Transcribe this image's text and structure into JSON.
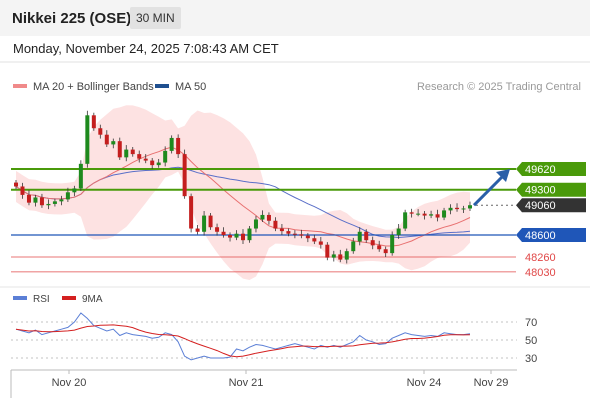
{
  "header": {
    "instrument": "Nikkei 225 (OSE)",
    "timeframe": "30 MIN"
  },
  "datetime": "Monday, November 24, 2025 7:08:43 AM CET",
  "legend": {
    "ma20_bb": "MA 20 + Bollinger Bands",
    "ma50": "MA 50",
    "copyright": "Research © 2025 Trading Central"
  },
  "colors": {
    "resistance": "#4a9a0a",
    "support": "#1f56b8",
    "weak_support": "#e04848",
    "current": "#333333",
    "ma20": "#e87070",
    "ma50": "#5a6fc8",
    "band_fill": "#fde2e2",
    "up_candle": "#1e8a1e",
    "down_candle": "#c41e1e",
    "rsi": "#5b7fd6",
    "rsi_ma": "#d42020",
    "arrow": "#2a5fa8"
  },
  "chart_data": [
    {
      "type": "candlestick",
      "title": "Nikkei 225 (OSE)",
      "timeframe": "30 MIN",
      "x_labels": [
        "Nov 20",
        "Nov 21",
        "Nov 24",
        "Nov 29"
      ],
      "series": [
        {
          "name": "MA 20 + Bollinger Bands",
          "color": "#e87070"
        },
        {
          "name": "MA 50",
          "color": "#5a6fc8"
        }
      ],
      "price_levels": [
        {
          "value": 49620,
          "label": "49620",
          "kind": "resistance"
        },
        {
          "value": 49300,
          "label": "49300",
          "kind": "resistance"
        },
        {
          "value": 49060,
          "label": "49060",
          "kind": "current"
        },
        {
          "value": 48600,
          "label": "48600",
          "kind": "support"
        },
        {
          "value": 48260,
          "label": "48260",
          "kind": "support_weak"
        },
        {
          "value": 48030,
          "label": "48030",
          "kind": "support_weak"
        }
      ],
      "trend_arrow": {
        "from": 49060,
        "to": 49620,
        "direction": "up"
      },
      "closes": [
        49350,
        49220,
        49100,
        49180,
        49060,
        49080,
        49120,
        49150,
        49260,
        49320,
        49700,
        50450,
        50250,
        50150,
        50000,
        50050,
        49800,
        49920,
        49850,
        49780,
        49750,
        49680,
        49720,
        49900,
        50100,
        49850,
        49200,
        48700,
        48650,
        48900,
        48720,
        48650,
        48600,
        48560,
        48620,
        48520,
        48700,
        48840,
        48910,
        48820,
        48700,
        48660,
        48620,
        48610,
        48590,
        48550,
        48500,
        48450,
        48250,
        48300,
        48220,
        48350,
        48500,
        48650,
        48520,
        48440,
        48380,
        48320,
        48600,
        48700,
        48950,
        48930,
        48930,
        48900,
        48920,
        48870,
        48980,
        49020,
        49000,
        49010,
        49060
      ]
    },
    {
      "type": "line",
      "title": "RSI",
      "series": [
        {
          "name": "RSI",
          "color": "#5b7fd6"
        },
        {
          "name": "9MA",
          "color": "#d42020"
        }
      ],
      "y_ticks": [
        70,
        50,
        30
      ],
      "rsi": [
        62,
        60,
        58,
        61,
        56,
        58,
        60,
        62,
        64,
        70,
        80,
        74,
        66,
        63,
        60,
        62,
        55,
        58,
        56,
        55,
        54,
        52,
        53,
        58,
        56,
        48,
        32,
        28,
        30,
        32,
        30,
        30,
        30,
        31,
        40,
        38,
        42,
        45,
        44,
        42,
        40,
        42,
        44,
        46,
        44,
        42,
        40,
        44,
        42,
        44,
        42,
        45,
        48,
        55,
        50,
        48,
        45,
        46,
        52,
        55,
        58,
        56,
        55,
        54,
        55,
        54,
        58,
        57,
        56,
        56,
        57
      ]
    }
  ]
}
